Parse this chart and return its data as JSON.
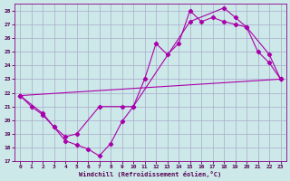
{
  "xlabel": "Windchill (Refroidissement éolien,°C)",
  "background_color": "#cce8e8",
  "grid_color": "#aaaacc",
  "line_color": "#aa00aa",
  "xlim": [
    -0.5,
    23.5
  ],
  "ylim": [
    17,
    28.5
  ],
  "xticks": [
    0,
    1,
    2,
    3,
    4,
    5,
    6,
    7,
    8,
    9,
    10,
    11,
    12,
    13,
    14,
    15,
    16,
    17,
    18,
    19,
    20,
    21,
    22,
    23
  ],
  "yticks": [
    17,
    18,
    19,
    20,
    21,
    22,
    23,
    24,
    25,
    26,
    27,
    28
  ],
  "series1": [
    [
      0,
      21.8
    ],
    [
      1,
      21.0
    ],
    [
      2,
      20.4
    ],
    [
      3,
      19.5
    ],
    [
      4,
      18.5
    ],
    [
      5,
      18.2
    ],
    [
      6,
      17.9
    ],
    [
      7,
      17.4
    ],
    [
      8,
      18.3
    ],
    [
      9,
      19.9
    ],
    [
      10,
      21.0
    ],
    [
      11,
      23.0
    ],
    [
      12,
      25.6
    ],
    [
      13,
      24.8
    ],
    [
      14,
      25.6
    ],
    [
      15,
      28.0
    ],
    [
      16,
      27.2
    ],
    [
      17,
      27.5
    ],
    [
      18,
      27.2
    ],
    [
      19,
      27.0
    ],
    [
      20,
      26.8
    ],
    [
      21,
      25.0
    ],
    [
      22,
      24.2
    ],
    [
      23,
      23.0
    ]
  ],
  "series2": [
    [
      0,
      21.8
    ],
    [
      23,
      23.0
    ]
  ],
  "series3": [
    [
      0,
      21.8
    ],
    [
      2,
      20.5
    ],
    [
      3,
      19.5
    ],
    [
      4,
      18.8
    ],
    [
      5,
      19.0
    ],
    [
      7,
      21.0
    ],
    [
      9,
      21.0
    ],
    [
      10,
      21.0
    ],
    [
      15,
      27.2
    ],
    [
      18,
      28.2
    ],
    [
      19,
      27.5
    ],
    [
      20,
      26.8
    ],
    [
      22,
      24.8
    ],
    [
      23,
      23.0
    ]
  ]
}
